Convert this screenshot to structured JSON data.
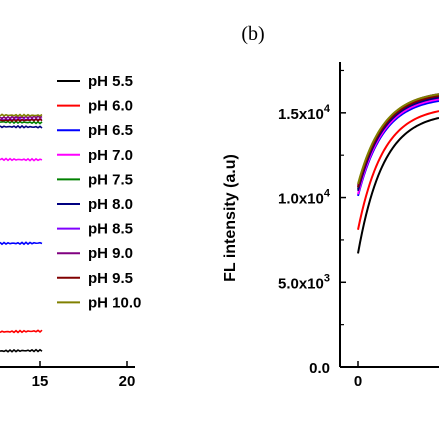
{
  "panel_label": "(b)",
  "chart_data": [
    {
      "type": "line",
      "panel": "a",
      "xlabel": "",
      "ylabel": "",
      "x_ticks": [
        "15",
        "20"
      ],
      "xlim": [
        11,
        20
      ],
      "legend_placement": "right",
      "series": [
        {
          "name": "pH 5.5",
          "color": "#000000",
          "level": 0.02
        },
        {
          "name": "pH 6.0",
          "color": "#ff0000",
          "level": 0.1
        },
        {
          "name": "pH 6.5",
          "color": "#0000ff",
          "level": 0.46
        },
        {
          "name": "pH 7.0",
          "color": "#ff00ff",
          "level": 0.8
        },
        {
          "name": "pH 7.5",
          "color": "#008000",
          "level": 0.95
        },
        {
          "name": "pH 8.0",
          "color": "#000080",
          "level": 0.93
        },
        {
          "name": "pH 8.5",
          "color": "#8000ff",
          "level": 0.96
        },
        {
          "name": "pH 9.0",
          "color": "#800080",
          "level": 0.97
        },
        {
          "name": "pH 9.5",
          "color": "#800000",
          "level": 0.96
        },
        {
          "name": "pH 10.0",
          "color": "#808000",
          "level": 0.98
        }
      ]
    },
    {
      "type": "line",
      "panel": "b",
      "ylabel": "FL intensity (a.u)",
      "xlabel": "",
      "ylim": [
        0,
        18000
      ],
      "y_ticks": [
        {
          "value": 0,
          "label": "0.0"
        },
        {
          "value": 5000,
          "label": "5.0x10",
          "exp": "3"
        },
        {
          "value": 10000,
          "label": "1.0x10",
          "exp": "4"
        },
        {
          "value": 15000,
          "label": "1.5x10",
          "exp": "4"
        }
      ],
      "x_ticks": [
        "0"
      ],
      "series": [
        {
          "name": "pH 5.5",
          "color": "#000000",
          "start": 6700,
          "end": 14700
        },
        {
          "name": "pH 6.0",
          "color": "#ff0000",
          "start": 8100,
          "end": 15100
        },
        {
          "name": "pH 6.5",
          "color": "#0000ff",
          "start": 10100,
          "end": 15700
        },
        {
          "name": "pH 7.0",
          "color": "#ff00ff",
          "start": 10200,
          "end": 15800
        },
        {
          "name": "pH 7.5",
          "color": "#008000",
          "start": 10500,
          "end": 16000
        },
        {
          "name": "pH 8.0",
          "color": "#000080",
          "start": 10400,
          "end": 15900
        },
        {
          "name": "pH 8.5",
          "color": "#8000ff",
          "start": 10600,
          "end": 16100
        },
        {
          "name": "pH 9.0",
          "color": "#800080",
          "start": 10700,
          "end": 16100
        },
        {
          "name": "pH 9.5",
          "color": "#800000",
          "start": 10600,
          "end": 16000
        },
        {
          "name": "pH 10.0",
          "color": "#808000",
          "start": 10800,
          "end": 16100
        }
      ]
    }
  ]
}
